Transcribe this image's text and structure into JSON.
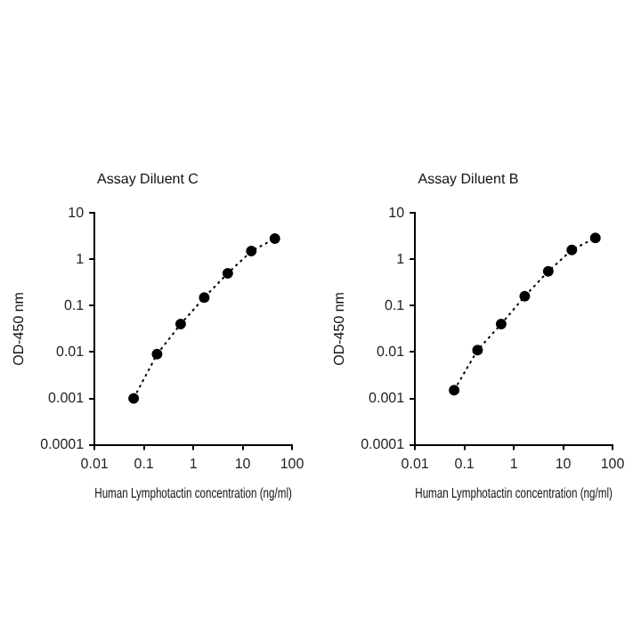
{
  "chart_data": [
    {
      "type": "line",
      "title": "Assay Diluent C",
      "xlabel": "Human Lymphotactin concentration (ng/ml)",
      "ylabel": "OD-450 nm",
      "log": "xy",
      "xlim": [
        0.01,
        100
      ],
      "xticks": [
        0.01,
        0.1,
        1,
        10,
        100
      ],
      "ylim": [
        0.0001,
        10
      ],
      "yticks": [
        0.0001,
        0.001,
        0.01,
        0.1,
        1,
        10
      ],
      "grid": false,
      "legend": false,
      "marker": "circle",
      "line_style": "dotted",
      "series": [
        {
          "color": "#000000",
          "x": [
            0.062,
            0.185,
            0.556,
            1.67,
            5,
            15,
            45
          ],
          "values": [
            0.001,
            0.009,
            0.04,
            0.15,
            0.5,
            1.5,
            2.8
          ]
        }
      ]
    },
    {
      "type": "line",
      "title": "Assay Diluent B",
      "xlabel": "Human Lymphotactin concentration (ng/ml)",
      "ylabel": "OD-450 nm",
      "log": "xy",
      "xlim": [
        0.01,
        100
      ],
      "xticks": [
        0.01,
        0.1,
        1,
        10,
        100
      ],
      "ylim": [
        0.0001,
        10
      ],
      "yticks": [
        0.0001,
        0.001,
        0.01,
        0.1,
        1,
        10
      ],
      "grid": false,
      "legend": false,
      "marker": "circle",
      "line_style": "dotted",
      "series": [
        {
          "color": "#000000",
          "x": [
            0.062,
            0.185,
            0.556,
            1.67,
            5,
            15,
            45
          ],
          "values": [
            0.0015,
            0.011,
            0.04,
            0.16,
            0.55,
            1.6,
            2.9
          ]
        }
      ]
    }
  ]
}
